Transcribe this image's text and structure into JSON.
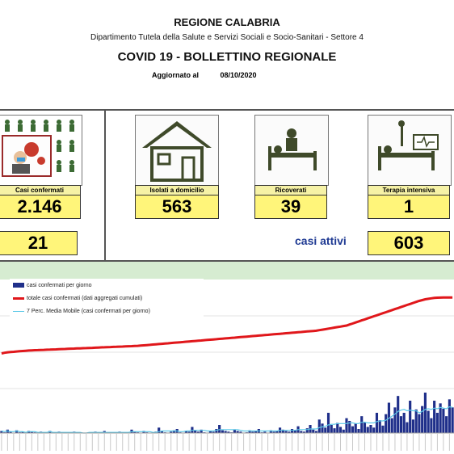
{
  "header": {
    "region": "REGIONE CALABRIA",
    "department": "Dipartimento Tutela della Salute e Servizi Sociali e Socio-Sanitari - Settore 4",
    "title": "COVID 19 - BOLLETTINO REGIONALE",
    "updated_label": "Aggiornato al",
    "updated_date": "08/10/2020"
  },
  "cards": {
    "confermati": {
      "label": "Casi confermati",
      "value": "2.146",
      "sub_value": "21"
    },
    "domicilio": {
      "label": "Isolati a domicilio",
      "value": "563"
    },
    "ricoverati": {
      "label": "Ricoverati",
      "value": "39"
    },
    "terapia": {
      "label": "Terapia intensiva",
      "value": "1"
    }
  },
  "attivi": {
    "label": "casi attivi",
    "value": "603"
  },
  "colors": {
    "bars": "#1f2f8a",
    "cumulative": "#e0171b",
    "moving_avg": "#5bc8e8",
    "value_box": "#fff57a",
    "band": "#d6ecd1"
  },
  "chart_data": {
    "type": "bar",
    "legend": [
      "casi confermati per giorno",
      "totale casi confermati (dati aggregati cumulati)",
      "7 Perc. Media Mobile (casi confermati per giorno)"
    ],
    "legend_position": "top-left",
    "series": [
      {
        "name": "casi confermati per giorno",
        "values": [
          3,
          1,
          5,
          2,
          0,
          4,
          1,
          2,
          0,
          3,
          2,
          1,
          0,
          2,
          1,
          0,
          3,
          1,
          0,
          2,
          1,
          0,
          1,
          0,
          2,
          0,
          1,
          0,
          0,
          1,
          0,
          2,
          1,
          0,
          3,
          0,
          1,
          0,
          0,
          2,
          1,
          0,
          0,
          5,
          2,
          1,
          0,
          3,
          1,
          0,
          0,
          2,
          8,
          3,
          1,
          0,
          2,
          4,
          6,
          1,
          0,
          3,
          2,
          9,
          4,
          2,
          5,
          1,
          0,
          3,
          2,
          6,
          12,
          4,
          3,
          2,
          1,
          5,
          3,
          2,
          0,
          1,
          4,
          2,
          3,
          6,
          1,
          2,
          0,
          4,
          2,
          3,
          8,
          5,
          3,
          2,
          6,
          4,
          10,
          3,
          2,
          7,
          12,
          5,
          3,
          20,
          14,
          8,
          30,
          12,
          7,
          15,
          9,
          5,
          22,
          18,
          10,
          14,
          6,
          25,
          16,
          9,
          12,
          8,
          30,
          19,
          11,
          28,
          45,
          22,
          38,
          55,
          25,
          30,
          16,
          48,
          20,
          35,
          28,
          40,
          60,
          33,
          22,
          48,
          30,
          44,
          36,
          25,
          50,
          38
        ]
      },
      {
        "name": "totale casi confermati (dati aggregati cumulati)",
        "values": [
          1058,
          1070,
          1080,
          1085,
          1090,
          1095,
          1100,
          1105,
          1110,
          1115,
          1118,
          1120,
          1122,
          1125,
          1127,
          1130,
          1132,
          1135,
          1137,
          1140,
          1142,
          1145,
          1147,
          1150,
          1152,
          1155,
          1157,
          1160,
          1162,
          1165,
          1167,
          1170,
          1172,
          1175,
          1177,
          1180,
          1182,
          1185,
          1187,
          1190,
          1192,
          1195,
          1197,
          1200,
          1202,
          1205,
          1210,
          1215,
          1220,
          1225,
          1230,
          1235,
          1240,
          1245,
          1250,
          1255,
          1260,
          1265,
          1270,
          1275,
          1280,
          1285,
          1290,
          1295,
          1300,
          1305,
          1310,
          1315,
          1320,
          1325,
          1330,
          1335,
          1340,
          1345,
          1350,
          1355,
          1360,
          1365,
          1370,
          1375,
          1380,
          1385,
          1390,
          1395,
          1400,
          1405,
          1410,
          1415,
          1420,
          1425,
          1430,
          1435,
          1440,
          1445,
          1450,
          1455,
          1460,
          1465,
          1470,
          1475,
          1480,
          1485,
          1490,
          1495,
          1500,
          1510,
          1520,
          1530,
          1540,
          1550,
          1560,
          1570,
          1580,
          1590,
          1600,
          1620,
          1640,
          1660,
          1680,
          1700,
          1720,
          1740,
          1760,
          1780,
          1800,
          1820,
          1840,
          1860,
          1880,
          1900,
          1920,
          1940,
          1960,
          1980,
          2000,
          2020,
          2040,
          2060,
          2080,
          2095,
          2110,
          2120,
          2130,
          2138,
          2142,
          2144,
          2145,
          2146,
          2146,
          2146
        ]
      },
      {
        "name": "7 Perc. Media Mobile (casi confermati per giorno)",
        "values": [
          3,
          2,
          3,
          2,
          2,
          3,
          2,
          2,
          1,
          2,
          2,
          2,
          1,
          1,
          1,
          1,
          2,
          1,
          1,
          1,
          1,
          1,
          1,
          1,
          1,
          1,
          1,
          0,
          0,
          1,
          1,
          1,
          1,
          1,
          1,
          1,
          1,
          1,
          1,
          1,
          1,
          1,
          1,
          2,
          2,
          2,
          2,
          2,
          2,
          2,
          1,
          1,
          2,
          3,
          3,
          3,
          3,
          3,
          3,
          2,
          2,
          3,
          3,
          4,
          4,
          4,
          4,
          4,
          3,
          3,
          3,
          4,
          5,
          5,
          5,
          5,
          5,
          5,
          5,
          4,
          3,
          3,
          3,
          3,
          3,
          3,
          3,
          3,
          3,
          3,
          3,
          3,
          4,
          4,
          4,
          4,
          4,
          4,
          5,
          5,
          5,
          5,
          6,
          6,
          6,
          8,
          9,
          10,
          12,
          13,
          13,
          14,
          14,
          14,
          14,
          15,
          15,
          14,
          14,
          16,
          16,
          15,
          15,
          15,
          17,
          18,
          18,
          19,
          22,
          25,
          28,
          32,
          34,
          35,
          33,
          34,
          33,
          33,
          30,
          32,
          35,
          36,
          35,
          37,
          36,
          38,
          37,
          36,
          39,
          38
        ]
      }
    ]
  }
}
